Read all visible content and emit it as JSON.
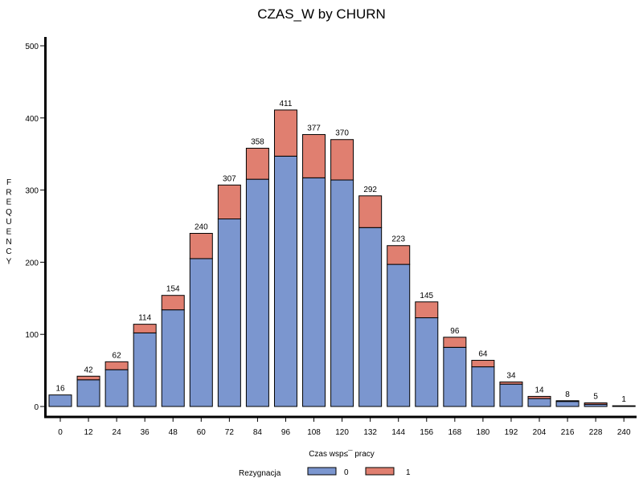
{
  "chart_data": {
    "type": "bar",
    "stacked": true,
    "title": "CZAS_W  by  CHURN",
    "xlabel": "Czas wsp≤¯ pracy",
    "ylabel": "FREQUENCY",
    "ylim": [
      0,
      500
    ],
    "yticks": [
      0,
      100,
      200,
      300,
      400,
      500
    ],
    "grid": false,
    "legend_title": "Rezygnacja",
    "legend_position": "bottom",
    "categories": [
      "0",
      "12",
      "24",
      "36",
      "48",
      "60",
      "72",
      "84",
      "96",
      "108",
      "120",
      "132",
      "144",
      "156",
      "168",
      "180",
      "192",
      "204",
      "216",
      "228",
      "240"
    ],
    "totals": [
      "16",
      "42",
      "62",
      "114",
      "154",
      "240",
      "307",
      "358",
      "411",
      "377",
      "370",
      "292",
      "223",
      "145",
      "96",
      "64",
      "34",
      "14",
      "8",
      "5",
      "1"
    ],
    "series": [
      {
        "name": "0",
        "color": "#7b96cf",
        "values": [
          16,
          37,
          51,
          102,
          134,
          205,
          260,
          315,
          347,
          317,
          314,
          248,
          197,
          123,
          82,
          55,
          31,
          11,
          7,
          3,
          1
        ]
      },
      {
        "name": "1",
        "color": "#e07f70",
        "values": [
          0,
          5,
          11,
          12,
          20,
          35,
          47,
          43,
          64,
          60,
          56,
          44,
          26,
          22,
          14,
          9,
          3,
          3,
          1,
          2,
          0
        ]
      }
    ]
  }
}
